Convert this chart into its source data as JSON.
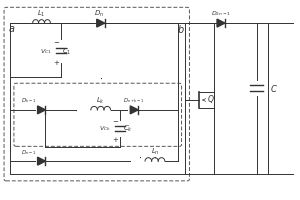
{
  "fig_width": 3.0,
  "fig_height": 2.0,
  "dpi": 100,
  "bg_color": "#ffffff",
  "line_color": "#333333",
  "line_width": 0.7
}
